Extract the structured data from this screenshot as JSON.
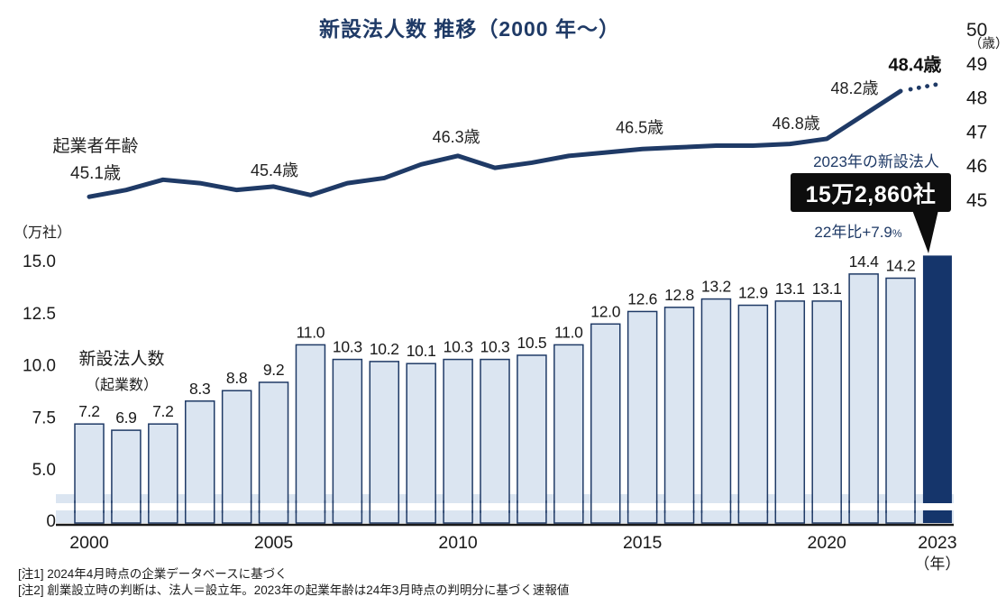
{
  "title": "新設法人数 推移（2000 年～）",
  "line_label": {
    "name": "起業者年齢",
    "start": "45.1歳"
  },
  "bar_label": {
    "line1": "新設法人数",
    "line2": "（起業数）"
  },
  "callout": {
    "heading": "2023年の新設法人",
    "value": "15万2,860社",
    "growth": "22年比+7.9",
    "growth_unit": "%"
  },
  "notes": [
    "[注1] 2024年4月時点の企業データベースに基づく",
    "[注2] 創業設立時の判断は、法人＝設立年。2023年の起業年齢は24年3月時点の判明分に基づく速報値"
  ],
  "colors": {
    "navy": "#1f3a66",
    "bar_fill": "#dbe5f1",
    "bar_stroke": "#1f3a66",
    "highlight_bar": "#15356b",
    "callout_bg": "#0d0d0d",
    "text": "#1a1a1a",
    "axis": "#1a1a1a"
  },
  "chart_data": {
    "type": "bar+line combo",
    "x_years": [
      2000,
      2001,
      2002,
      2003,
      2004,
      2005,
      2006,
      2007,
      2008,
      2009,
      2010,
      2011,
      2012,
      2013,
      2014,
      2015,
      2016,
      2017,
      2018,
      2019,
      2020,
      2021,
      2022,
      2023
    ],
    "bars": {
      "name": "新設法人数（起業数）",
      "unit": "万社",
      "unit_label": "（万社）",
      "values": [
        7.2,
        6.9,
        7.2,
        8.3,
        8.8,
        9.2,
        11.0,
        10.3,
        10.2,
        10.1,
        10.3,
        10.3,
        10.5,
        11.0,
        12.0,
        12.6,
        12.8,
        13.2,
        12.9,
        13.1,
        13.1,
        14.4,
        14.2,
        15.286
      ],
      "value_labels": [
        "7.2",
        "6.9",
        "7.2",
        "8.3",
        "8.8",
        "9.2",
        "11.0",
        "10.3",
        "10.2",
        "10.1",
        "10.3",
        "10.3",
        "10.5",
        "11.0",
        "12.0",
        "12.6",
        "12.8",
        "13.2",
        "12.9",
        "13.1",
        "13.1",
        "14.4",
        "14.2",
        ""
      ],
      "highlight_index": 23,
      "ylim": [
        0,
        15.0
      ],
      "axis_ticks": [
        {
          "v": 0,
          "label": "0"
        },
        {
          "v": 5,
          "label": "5.0"
        },
        {
          "v": 7.5,
          "label": "7.5"
        },
        {
          "v": 10,
          "label": "10.0"
        },
        {
          "v": 12.5,
          "label": "12.5"
        },
        {
          "v": 15,
          "label": "15.0"
        }
      ],
      "axis_break": true
    },
    "line": {
      "name": "起業者年齢",
      "unit": "歳",
      "unit_label": "（歳）",
      "values": [
        45.1,
        45.3,
        45.6,
        45.5,
        45.3,
        45.4,
        45.15,
        45.5,
        45.65,
        46.05,
        46.3,
        45.95,
        46.1,
        46.3,
        46.4,
        46.5,
        46.55,
        46.6,
        46.6,
        46.65,
        46.8,
        47.5,
        48.2,
        48.4
      ],
      "dotted_from_index": 22,
      "annotations": [
        {
          "year": 2005,
          "text": "45.4歳",
          "bold": false
        },
        {
          "year": 2010,
          "text": "46.3歳",
          "bold": false
        },
        {
          "year": 2015,
          "text": "46.5歳",
          "bold": false
        },
        {
          "year": 2020,
          "text": "46.8歳",
          "bold": false
        },
        {
          "year": 2022,
          "text": "48.2歳",
          "bold": false
        },
        {
          "year": 2023,
          "text": "48.4歳",
          "bold": true
        }
      ],
      "ylim": [
        45,
        50
      ],
      "axis_ticks": [
        {
          "v": 45,
          "label": "45"
        },
        {
          "v": 46,
          "label": "46"
        },
        {
          "v": 47,
          "label": "47"
        },
        {
          "v": 48,
          "label": "48"
        },
        {
          "v": 49,
          "label": "49"
        },
        {
          "v": 50,
          "label": "50"
        }
      ]
    },
    "x_axis_ticks": [
      {
        "year": 2000,
        "label": "2000"
      },
      {
        "year": 2005,
        "label": "2005"
      },
      {
        "year": 2010,
        "label": "2010"
      },
      {
        "year": 2015,
        "label": "2015"
      },
      {
        "year": 2020,
        "label": "2020"
      },
      {
        "year": 2023,
        "label": "2023",
        "unit": "（年）"
      }
    ],
    "grid": false,
    "legend": "inline labels"
  }
}
